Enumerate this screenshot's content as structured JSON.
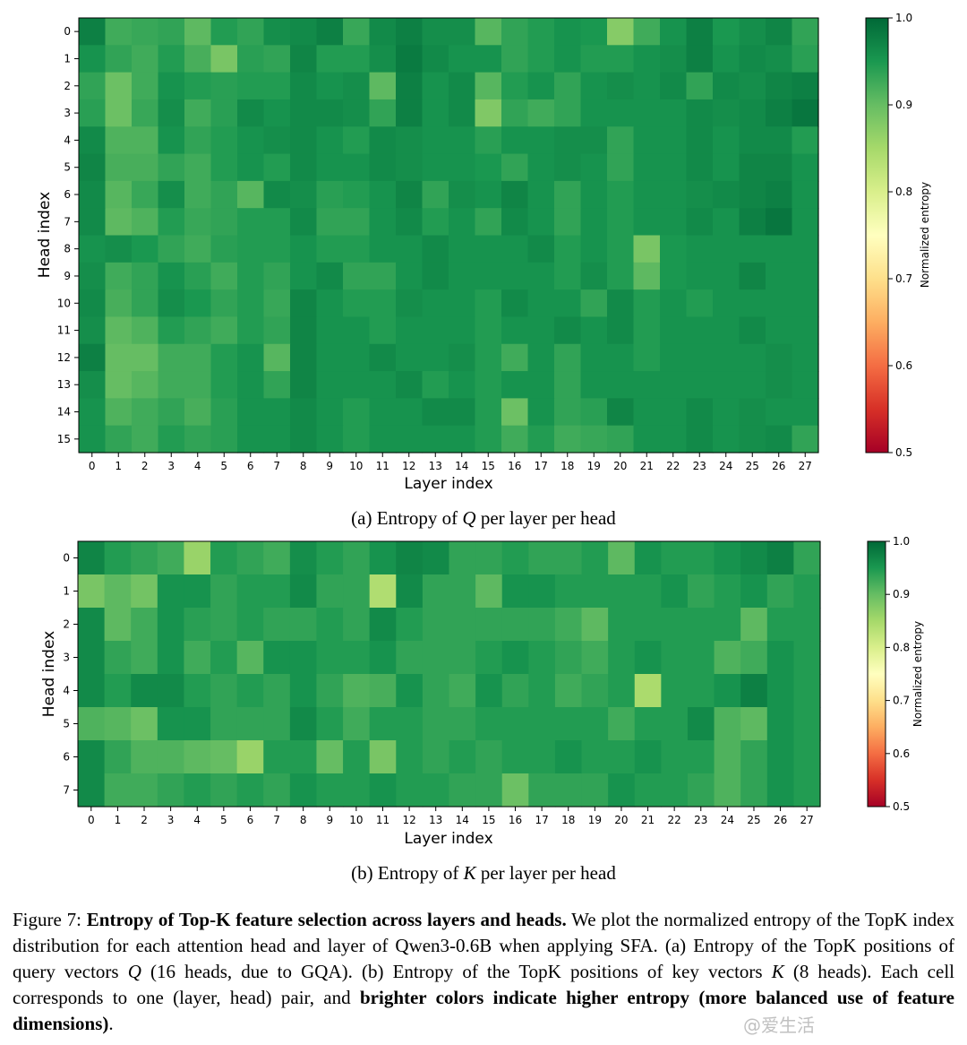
{
  "chart_data": [
    {
      "type": "heatmap",
      "title": "",
      "subcaption_prefix": "(a) Entropy of ",
      "subcaption_var": "Q",
      "subcaption_suffix": " per layer per head",
      "xlabel": "Layer index",
      "ylabel": "Head index",
      "x_ticks": [
        "0",
        "1",
        "2",
        "3",
        "4",
        "5",
        "6",
        "7",
        "8",
        "9",
        "10",
        "11",
        "12",
        "13",
        "14",
        "15",
        "16",
        "17",
        "18",
        "19",
        "20",
        "21",
        "22",
        "23",
        "24",
        "25",
        "26",
        "27"
      ],
      "y_ticks": [
        "0",
        "1",
        "2",
        "3",
        "4",
        "5",
        "6",
        "7",
        "8",
        "9",
        "10",
        "11",
        "12",
        "13",
        "14",
        "15"
      ],
      "colorbar_label": "Normalized entropy",
      "colorbar_ticks": [
        "1.0",
        "0.9",
        "0.8",
        "0.7",
        "0.6",
        "0.5"
      ],
      "vmin": 0.5,
      "vmax": 1.0,
      "values": [
        [
          0.975,
          0.925,
          0.93,
          0.935,
          0.905,
          0.945,
          0.935,
          0.96,
          0.965,
          0.975,
          0.93,
          0.965,
          0.975,
          0.96,
          0.96,
          0.91,
          0.935,
          0.945,
          0.955,
          0.95,
          0.875,
          0.925,
          0.955,
          0.975,
          0.95,
          0.96,
          0.97,
          0.935
        ],
        [
          0.955,
          0.935,
          0.925,
          0.945,
          0.92,
          0.885,
          0.94,
          0.935,
          0.97,
          0.945,
          0.945,
          0.96,
          0.98,
          0.965,
          0.955,
          0.955,
          0.935,
          0.945,
          0.955,
          0.945,
          0.945,
          0.955,
          0.96,
          0.975,
          0.955,
          0.965,
          0.96,
          0.94
        ],
        [
          0.935,
          0.895,
          0.925,
          0.955,
          0.945,
          0.94,
          0.945,
          0.945,
          0.965,
          0.955,
          0.96,
          0.905,
          0.975,
          0.955,
          0.965,
          0.91,
          0.945,
          0.955,
          0.935,
          0.955,
          0.96,
          0.955,
          0.965,
          0.935,
          0.965,
          0.96,
          0.97,
          0.975
        ],
        [
          0.94,
          0.895,
          0.93,
          0.96,
          0.925,
          0.94,
          0.965,
          0.955,
          0.965,
          0.965,
          0.96,
          0.935,
          0.975,
          0.955,
          0.965,
          0.88,
          0.935,
          0.925,
          0.935,
          0.955,
          0.955,
          0.955,
          0.955,
          0.965,
          0.96,
          0.965,
          0.975,
          0.985
        ],
        [
          0.965,
          0.915,
          0.915,
          0.955,
          0.935,
          0.945,
          0.955,
          0.96,
          0.965,
          0.955,
          0.945,
          0.965,
          0.96,
          0.955,
          0.955,
          0.94,
          0.955,
          0.955,
          0.96,
          0.96,
          0.935,
          0.955,
          0.955,
          0.965,
          0.955,
          0.965,
          0.965,
          0.945
        ],
        [
          0.97,
          0.92,
          0.92,
          0.935,
          0.925,
          0.945,
          0.955,
          0.945,
          0.965,
          0.955,
          0.955,
          0.965,
          0.96,
          0.955,
          0.955,
          0.95,
          0.935,
          0.955,
          0.96,
          0.955,
          0.935,
          0.955,
          0.955,
          0.965,
          0.955,
          0.97,
          0.97,
          0.955
        ],
        [
          0.965,
          0.91,
          0.93,
          0.96,
          0.925,
          0.935,
          0.91,
          0.965,
          0.96,
          0.94,
          0.945,
          0.955,
          0.97,
          0.935,
          0.96,
          0.955,
          0.97,
          0.955,
          0.935,
          0.955,
          0.945,
          0.955,
          0.955,
          0.96,
          0.965,
          0.97,
          0.975,
          0.955
        ],
        [
          0.965,
          0.905,
          0.915,
          0.945,
          0.93,
          0.935,
          0.945,
          0.945,
          0.965,
          0.935,
          0.935,
          0.955,
          0.965,
          0.945,
          0.955,
          0.935,
          0.965,
          0.955,
          0.935,
          0.955,
          0.945,
          0.955,
          0.955,
          0.965,
          0.955,
          0.975,
          0.985,
          0.955
        ],
        [
          0.955,
          0.96,
          0.95,
          0.935,
          0.925,
          0.94,
          0.945,
          0.945,
          0.955,
          0.945,
          0.945,
          0.955,
          0.955,
          0.965,
          0.955,
          0.955,
          0.955,
          0.965,
          0.945,
          0.955,
          0.945,
          0.885,
          0.95,
          0.955,
          0.955,
          0.955,
          0.955,
          0.955
        ],
        [
          0.96,
          0.925,
          0.935,
          0.955,
          0.94,
          0.925,
          0.945,
          0.935,
          0.955,
          0.965,
          0.935,
          0.935,
          0.955,
          0.965,
          0.955,
          0.955,
          0.955,
          0.955,
          0.945,
          0.96,
          0.945,
          0.905,
          0.95,
          0.955,
          0.955,
          0.97,
          0.955,
          0.955
        ],
        [
          0.965,
          0.92,
          0.935,
          0.96,
          0.95,
          0.935,
          0.945,
          0.93,
          0.97,
          0.955,
          0.945,
          0.945,
          0.96,
          0.955,
          0.955,
          0.945,
          0.965,
          0.955,
          0.955,
          0.935,
          0.965,
          0.945,
          0.955,
          0.945,
          0.955,
          0.955,
          0.955,
          0.955
        ],
        [
          0.96,
          0.905,
          0.915,
          0.945,
          0.935,
          0.925,
          0.945,
          0.935,
          0.97,
          0.955,
          0.955,
          0.945,
          0.955,
          0.955,
          0.955,
          0.945,
          0.955,
          0.955,
          0.965,
          0.955,
          0.965,
          0.945,
          0.955,
          0.955,
          0.955,
          0.965,
          0.955,
          0.955
        ],
        [
          0.975,
          0.9,
          0.9,
          0.925,
          0.925,
          0.945,
          0.955,
          0.91,
          0.97,
          0.955,
          0.955,
          0.965,
          0.955,
          0.955,
          0.96,
          0.945,
          0.925,
          0.955,
          0.935,
          0.955,
          0.955,
          0.945,
          0.955,
          0.955,
          0.955,
          0.955,
          0.96,
          0.955
        ],
        [
          0.96,
          0.9,
          0.91,
          0.925,
          0.925,
          0.945,
          0.955,
          0.935,
          0.97,
          0.955,
          0.955,
          0.955,
          0.965,
          0.945,
          0.955,
          0.945,
          0.955,
          0.955,
          0.935,
          0.955,
          0.955,
          0.955,
          0.955,
          0.955,
          0.955,
          0.955,
          0.96,
          0.955
        ],
        [
          0.955,
          0.915,
          0.925,
          0.935,
          0.92,
          0.94,
          0.955,
          0.955,
          0.965,
          0.955,
          0.945,
          0.955,
          0.955,
          0.965,
          0.965,
          0.945,
          0.895,
          0.955,
          0.935,
          0.94,
          0.97,
          0.955,
          0.955,
          0.965,
          0.955,
          0.96,
          0.955,
          0.955
        ],
        [
          0.955,
          0.935,
          0.925,
          0.945,
          0.935,
          0.94,
          0.955,
          0.955,
          0.965,
          0.955,
          0.945,
          0.955,
          0.955,
          0.955,
          0.955,
          0.945,
          0.925,
          0.945,
          0.925,
          0.93,
          0.935,
          0.955,
          0.955,
          0.965,
          0.955,
          0.96,
          0.965,
          0.935
        ]
      ]
    },
    {
      "type": "heatmap",
      "title": "",
      "subcaption_prefix": "(b) Entropy of ",
      "subcaption_var": "K",
      "subcaption_suffix": " per layer per head",
      "xlabel": "Layer index",
      "ylabel": "Head index",
      "x_ticks": [
        "0",
        "1",
        "2",
        "3",
        "4",
        "5",
        "6",
        "7",
        "8",
        "9",
        "10",
        "11",
        "12",
        "13",
        "14",
        "15",
        "16",
        "17",
        "18",
        "19",
        "20",
        "21",
        "22",
        "23",
        "24",
        "25",
        "26",
        "27"
      ],
      "y_ticks": [
        "0",
        "1",
        "2",
        "3",
        "4",
        "5",
        "6",
        "7"
      ],
      "colorbar_label": "Normalized entropy",
      "colorbar_ticks": [
        "1.0",
        "0.9",
        "0.8",
        "0.7",
        "0.6",
        "0.5"
      ],
      "vmin": 0.5,
      "vmax": 1.0,
      "values": [
        [
          0.97,
          0.945,
          0.935,
          0.925,
          0.86,
          0.945,
          0.935,
          0.925,
          0.96,
          0.945,
          0.935,
          0.955,
          0.97,
          0.965,
          0.935,
          0.935,
          0.945,
          0.935,
          0.935,
          0.945,
          0.905,
          0.955,
          0.945,
          0.945,
          0.955,
          0.965,
          0.975,
          0.935
        ],
        [
          0.885,
          0.905,
          0.89,
          0.955,
          0.955,
          0.935,
          0.945,
          0.945,
          0.965,
          0.935,
          0.935,
          0.84,
          0.965,
          0.935,
          0.935,
          0.905,
          0.955,
          0.955,
          0.945,
          0.945,
          0.945,
          0.945,
          0.955,
          0.935,
          0.945,
          0.955,
          0.935,
          0.945
        ],
        [
          0.965,
          0.905,
          0.925,
          0.955,
          0.94,
          0.935,
          0.945,
          0.935,
          0.935,
          0.945,
          0.935,
          0.965,
          0.945,
          0.935,
          0.935,
          0.935,
          0.935,
          0.935,
          0.925,
          0.905,
          0.945,
          0.945,
          0.945,
          0.945,
          0.945,
          0.905,
          0.945,
          0.945
        ],
        [
          0.965,
          0.935,
          0.925,
          0.955,
          0.925,
          0.945,
          0.91,
          0.955,
          0.955,
          0.945,
          0.945,
          0.955,
          0.935,
          0.935,
          0.935,
          0.945,
          0.955,
          0.945,
          0.935,
          0.925,
          0.945,
          0.955,
          0.945,
          0.945,
          0.915,
          0.925,
          0.955,
          0.945
        ],
        [
          0.965,
          0.945,
          0.965,
          0.965,
          0.945,
          0.935,
          0.945,
          0.935,
          0.955,
          0.935,
          0.915,
          0.92,
          0.955,
          0.935,
          0.925,
          0.955,
          0.935,
          0.945,
          0.925,
          0.935,
          0.945,
          0.845,
          0.945,
          0.945,
          0.955,
          0.975,
          0.955,
          0.945
        ],
        [
          0.915,
          0.91,
          0.895,
          0.955,
          0.955,
          0.935,
          0.935,
          0.935,
          0.965,
          0.945,
          0.925,
          0.945,
          0.945,
          0.935,
          0.935,
          0.945,
          0.945,
          0.945,
          0.945,
          0.945,
          0.925,
          0.945,
          0.945,
          0.965,
          0.915,
          0.905,
          0.955,
          0.945
        ],
        [
          0.965,
          0.935,
          0.915,
          0.915,
          0.905,
          0.9,
          0.86,
          0.945,
          0.945,
          0.9,
          0.945,
          0.885,
          0.945,
          0.935,
          0.945,
          0.935,
          0.945,
          0.945,
          0.955,
          0.945,
          0.945,
          0.955,
          0.945,
          0.945,
          0.915,
          0.935,
          0.955,
          0.945
        ],
        [
          0.965,
          0.925,
          0.925,
          0.935,
          0.945,
          0.935,
          0.945,
          0.935,
          0.955,
          0.945,
          0.945,
          0.955,
          0.945,
          0.945,
          0.935,
          0.935,
          0.895,
          0.935,
          0.935,
          0.935,
          0.955,
          0.945,
          0.945,
          0.935,
          0.915,
          0.935,
          0.955,
          0.945
        ]
      ]
    }
  ],
  "caption": {
    "label": "Figure 7: ",
    "bold_title": "Entropy of Top-K feature selection across layers and heads.",
    "text_1": " We plot the normalized entropy of the TopK index distribution for each attention head and layer of Qwen3-0.6B when applying SFA. (a) Entropy of the TopK positions of query vectors ",
    "var_q": "Q",
    "text_2": " (16 heads, due to GQA). (b) Entropy of the TopK positions of key vectors ",
    "var_k": "K",
    "text_3": " (8 heads). Each cell corresponds to one (layer, head) pair, and ",
    "bold_1": "brighter colors indicate higher entropy",
    "text_4": " ",
    "bold_2": "(more balanced use of feature dimensions)",
    "text_5": "."
  },
  "watermark": "@爱生活"
}
